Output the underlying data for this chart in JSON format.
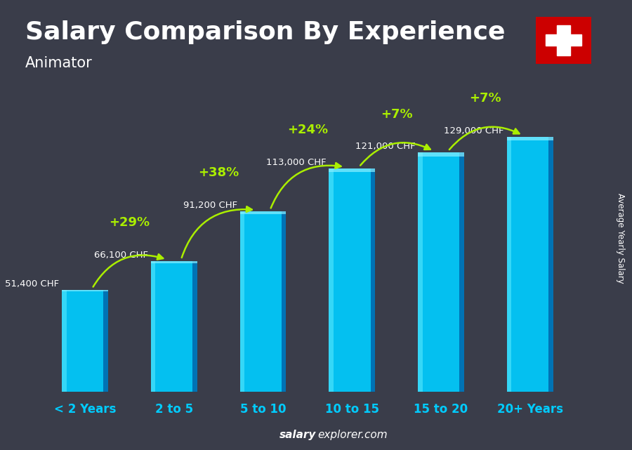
{
  "title": "Salary Comparison By Experience",
  "subtitle": "Animator",
  "categories": [
    "< 2 Years",
    "2 to 5",
    "5 to 10",
    "10 to 15",
    "15 to 20",
    "20+ Years"
  ],
  "values": [
    51400,
    66100,
    91200,
    113000,
    121000,
    129000
  ],
  "salary_labels": [
    "51,400 CHF",
    "66,100 CHF",
    "91,200 CHF",
    "113,000 CHF",
    "121,000 CHF",
    "129,000 CHF"
  ],
  "pct_labels": [
    "+29%",
    "+38%",
    "+24%",
    "+7%",
    "+7%"
  ],
  "bar_face_color": "#00ccff",
  "bar_edge_color": "#0077bb",
  "bar_right_color": "#005599",
  "bg_overlay": "#00000088",
  "text_color_white": "#ffffff",
  "text_color_green": "#aaee00",
  "title_fontsize": 26,
  "subtitle_fontsize": 15,
  "ylabel": "Average Yearly Salary",
  "ylim_max": 155000,
  "flag_red": "#cc0000",
  "footer_bold": "salary",
  "footer_normal": "explorer.com",
  "bar_width": 0.52
}
